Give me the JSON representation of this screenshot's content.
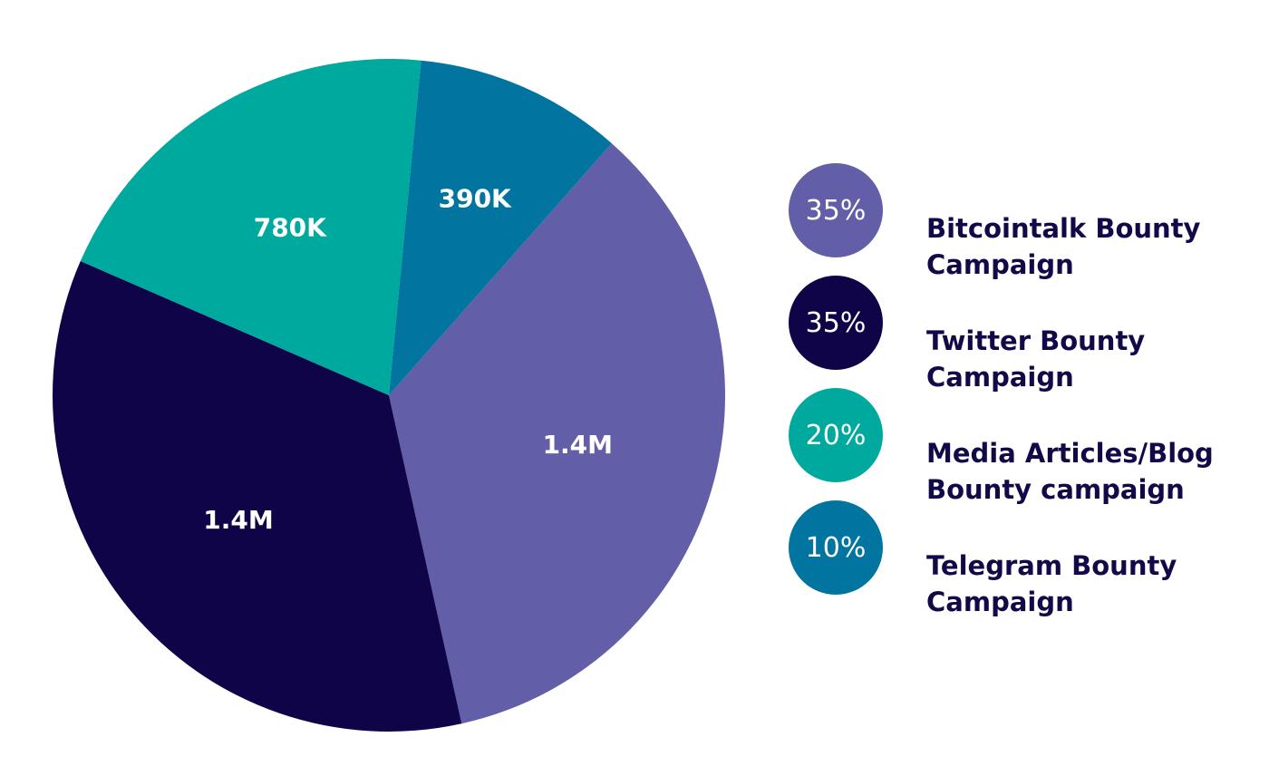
{
  "chart_data": {
    "type": "pie",
    "slices": [
      {
        "label": "Bitcointalk Bounty Campaign",
        "share": 35,
        "value_label": "1.4M",
        "percent_label": "35%",
        "color": "#625ea8"
      },
      {
        "label": "Twitter Bounty Campaign",
        "share": 35,
        "value_label": "1.4M",
        "percent_label": "35%",
        "color": "#0f0447"
      },
      {
        "label": "Media Articles/Blog Bounty campaign",
        "share": 20,
        "value_label": "780K",
        "percent_label": "20%",
        "color": "#00a99d"
      },
      {
        "label": "Telegram Bounty Campaign",
        "share": 10,
        "value_label": "390K",
        "percent_label": "10%",
        "color": "#01759f"
      }
    ],
    "legend_position": "right"
  },
  "legend": {
    "items": [
      {
        "percent": "35%",
        "line1": "Bitcointalk Bounty",
        "line2": "Campaign",
        "color": "#625ea8"
      },
      {
        "percent": "35%",
        "line1": "Twitter Bounty",
        "line2": "Campaign",
        "color": "#0f0447"
      },
      {
        "percent": "20%",
        "line1": "Media Articles/Blog",
        "line2": "Bounty campaign",
        "color": "#00a99d"
      },
      {
        "percent": "10%",
        "line1": "Telegram Bounty",
        "line2": "Campaign",
        "color": "#01759f"
      }
    ]
  }
}
